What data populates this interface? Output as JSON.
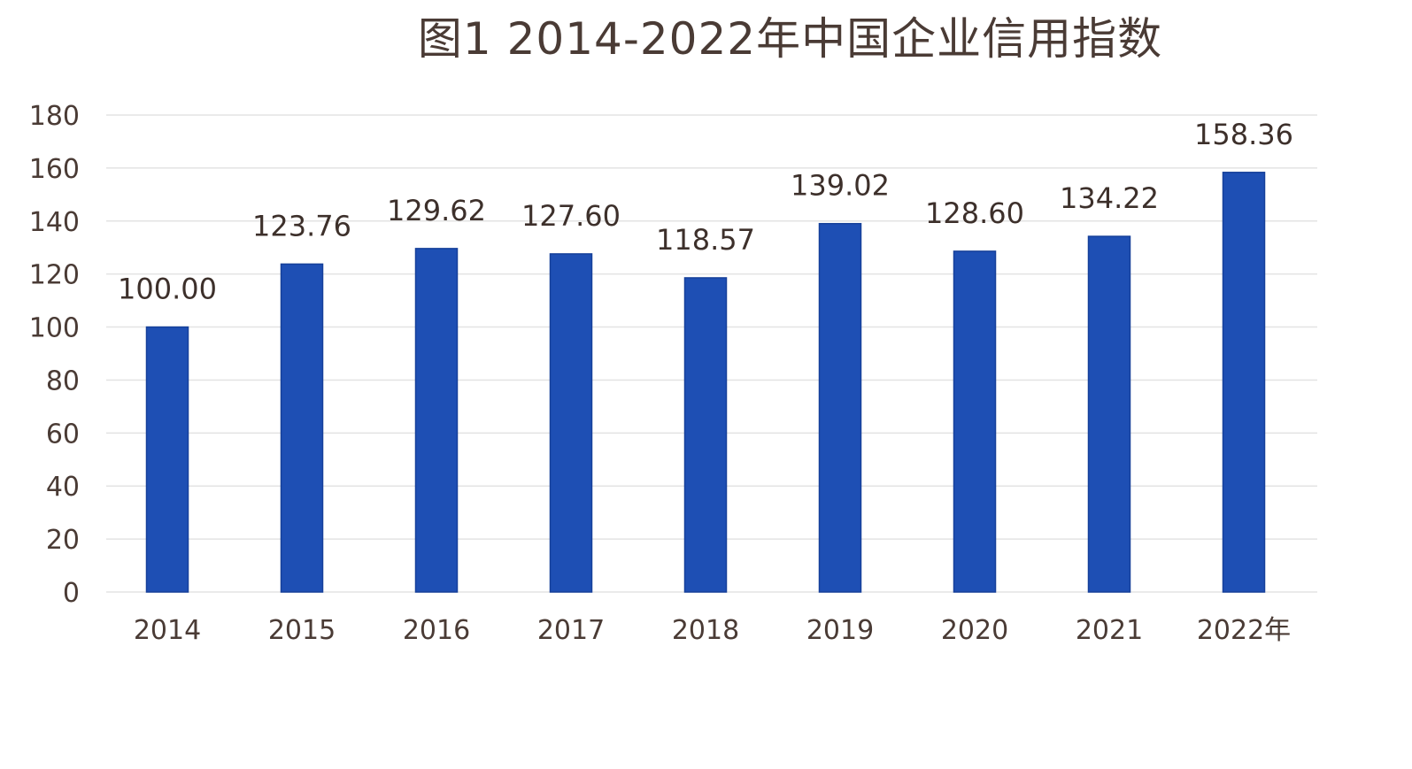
{
  "chart_data": {
    "type": "bar",
    "title": "图1 2014-2022年中国企业信用指数",
    "xlabel": "",
    "ylabel": "",
    "categories": [
      "2014",
      "2015",
      "2016",
      "2017",
      "2018",
      "2019",
      "2020",
      "2021",
      "2022年"
    ],
    "values": [
      100.0,
      123.76,
      129.62,
      127.6,
      118.57,
      139.02,
      128.6,
      134.22,
      158.36
    ],
    "value_labels": [
      "100.00",
      "123.76",
      "129.62",
      "127.60",
      "118.57",
      "139.02",
      "128.60",
      "134.22",
      "158.36"
    ],
    "ylim": [
      0,
      180
    ],
    "yticks": [
      0,
      20,
      40,
      60,
      80,
      100,
      120,
      140,
      160,
      180
    ],
    "grid": true,
    "legend": "none",
    "bar_color": "#1e4fb4",
    "bar_edge_color": "#16409a",
    "grid_color": "#e3e3e3",
    "text_color": "#4a3b35"
  }
}
